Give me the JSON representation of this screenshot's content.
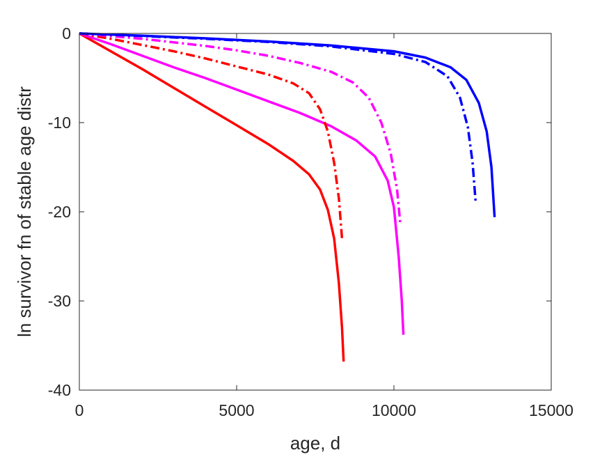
{
  "chart_data": {
    "type": "line",
    "title": "",
    "xlabel": "age, d",
    "ylabel": "ln survivor fn of stable age distr",
    "xlim": [
      0,
      15000
    ],
    "ylim": [
      -40,
      0
    ],
    "x_ticks": [
      0,
      5000,
      10000,
      15000
    ],
    "y_ticks": [
      0,
      -10,
      -20,
      -30,
      -40
    ],
    "x_tick_labels": [
      "0",
      "5000",
      "10000",
      "15000"
    ],
    "y_tick_labels": [
      "0",
      "-10",
      "-20",
      "-30",
      "-40"
    ],
    "grid": false,
    "legend": "none",
    "series": [
      {
        "color": "#ff0000",
        "style": "solid",
        "points": [
          [
            0,
            0
          ],
          [
            1000,
            -2
          ],
          [
            2000,
            -4
          ],
          [
            3000,
            -6.1
          ],
          [
            4000,
            -8.2
          ],
          [
            5000,
            -10.3
          ],
          [
            6000,
            -12.4
          ],
          [
            6800,
            -14.3
          ],
          [
            7300,
            -15.8
          ],
          [
            7650,
            -17.5
          ],
          [
            7900,
            -19.8
          ],
          [
            8100,
            -23
          ],
          [
            8250,
            -28
          ],
          [
            8350,
            -33
          ],
          [
            8400,
            -36.8
          ]
        ]
      },
      {
        "color": "#ff00ff",
        "style": "solid",
        "points": [
          [
            0,
            0
          ],
          [
            1000,
            -1.2
          ],
          [
            2000,
            -2.5
          ],
          [
            3000,
            -3.8
          ],
          [
            4000,
            -5
          ],
          [
            5000,
            -6.3
          ],
          [
            6000,
            -7.6
          ],
          [
            7000,
            -8.9
          ],
          [
            8000,
            -10.4
          ],
          [
            8800,
            -12
          ],
          [
            9400,
            -13.8
          ],
          [
            9800,
            -16.5
          ],
          [
            10000,
            -19.5
          ],
          [
            10150,
            -25
          ],
          [
            10250,
            -30
          ],
          [
            10300,
            -33.8
          ]
        ]
      },
      {
        "color": "#0000ff",
        "style": "solid",
        "points": [
          [
            0,
            0
          ],
          [
            2000,
            -0.25
          ],
          [
            4000,
            -0.55
          ],
          [
            6000,
            -0.9
          ],
          [
            8000,
            -1.35
          ],
          [
            10000,
            -2
          ],
          [
            11000,
            -2.7
          ],
          [
            11800,
            -3.8
          ],
          [
            12300,
            -5.2
          ],
          [
            12700,
            -7.8
          ],
          [
            12950,
            -11
          ],
          [
            13100,
            -15
          ],
          [
            13200,
            -20.6
          ]
        ]
      },
      {
        "color": "#ff0000",
        "style": "dashdot",
        "points": [
          [
            0,
            0
          ],
          [
            1000,
            -0.6
          ],
          [
            2000,
            -1.3
          ],
          [
            3000,
            -2
          ],
          [
            4000,
            -2.8
          ],
          [
            5000,
            -3.7
          ],
          [
            6000,
            -4.6
          ],
          [
            6800,
            -5.6
          ],
          [
            7300,
            -6.7
          ],
          [
            7650,
            -8.5
          ],
          [
            7900,
            -11
          ],
          [
            8100,
            -14.5
          ],
          [
            8250,
            -18.5
          ],
          [
            8350,
            -23
          ]
        ]
      },
      {
        "color": "#ff00ff",
        "style": "dashdot",
        "points": [
          [
            0,
            0
          ],
          [
            1000,
            -0.3
          ],
          [
            2000,
            -0.6
          ],
          [
            3000,
            -1
          ],
          [
            4000,
            -1.4
          ],
          [
            5000,
            -1.9
          ],
          [
            6000,
            -2.5
          ],
          [
            7000,
            -3.3
          ],
          [
            8000,
            -4.3
          ],
          [
            8700,
            -5.5
          ],
          [
            9200,
            -7.2
          ],
          [
            9600,
            -10
          ],
          [
            9900,
            -13.5
          ],
          [
            10100,
            -17.5
          ],
          [
            10200,
            -21.2
          ]
        ]
      },
      {
        "color": "#0000ff",
        "style": "dashdot",
        "points": [
          [
            0,
            0
          ],
          [
            2000,
            -0.3
          ],
          [
            4000,
            -0.6
          ],
          [
            6000,
            -0.95
          ],
          [
            8000,
            -1.45
          ],
          [
            10000,
            -2.3
          ],
          [
            11000,
            -3.2
          ],
          [
            11700,
            -4.8
          ],
          [
            12100,
            -7.2
          ],
          [
            12350,
            -10.5
          ],
          [
            12500,
            -14.5
          ],
          [
            12600,
            -19
          ]
        ]
      }
    ]
  }
}
